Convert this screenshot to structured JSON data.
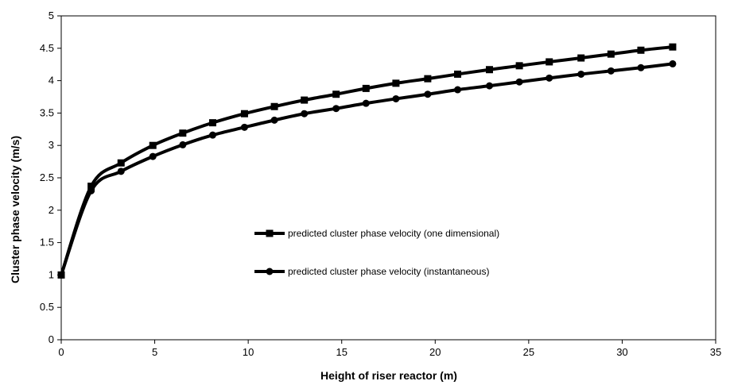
{
  "chart_data": {
    "type": "line",
    "title": "",
    "xlabel": "Height of riser reactor (m)",
    "ylabel": "Cluster phase velocity (m/s)",
    "xlim": [
      0,
      35
    ],
    "ylim": [
      0,
      5
    ],
    "xticks": [
      0,
      5,
      10,
      15,
      20,
      25,
      30,
      35
    ],
    "yticks": [
      0,
      0.5,
      1,
      1.5,
      2,
      2.5,
      3,
      3.5,
      4,
      4.5,
      5
    ],
    "grid": false,
    "legend_position": "center-right",
    "series": [
      {
        "name": "predicted cluster phase velocity (one dimensional)",
        "marker": "square",
        "color": "#000000",
        "x": [
          0,
          1.6,
          3.2,
          4.9,
          6.5,
          8.1,
          9.8,
          11.4,
          13.0,
          14.7,
          16.3,
          17.9,
          19.6,
          21.2,
          22.9,
          24.5,
          26.1,
          27.8,
          29.4,
          31.0,
          32.7
        ],
        "y": [
          1.0,
          2.37,
          2.73,
          3.0,
          3.19,
          3.35,
          3.49,
          3.6,
          3.7,
          3.79,
          3.88,
          3.96,
          4.03,
          4.1,
          4.17,
          4.23,
          4.29,
          4.35,
          4.41,
          4.47,
          4.52
        ]
      },
      {
        "name": "predicted cluster phase velocity (instantaneous)",
        "marker": "circle",
        "color": "#000000",
        "x": [
          0,
          1.6,
          3.2,
          4.9,
          6.5,
          8.1,
          9.8,
          11.4,
          13.0,
          14.7,
          16.3,
          17.9,
          19.6,
          21.2,
          22.9,
          24.5,
          26.1,
          27.8,
          29.4,
          31.0,
          32.7
        ],
        "y": [
          1.0,
          2.3,
          2.6,
          2.83,
          3.01,
          3.16,
          3.28,
          3.39,
          3.49,
          3.57,
          3.65,
          3.72,
          3.79,
          3.86,
          3.92,
          3.98,
          4.04,
          4.1,
          4.15,
          4.2,
          4.26
        ]
      }
    ]
  }
}
